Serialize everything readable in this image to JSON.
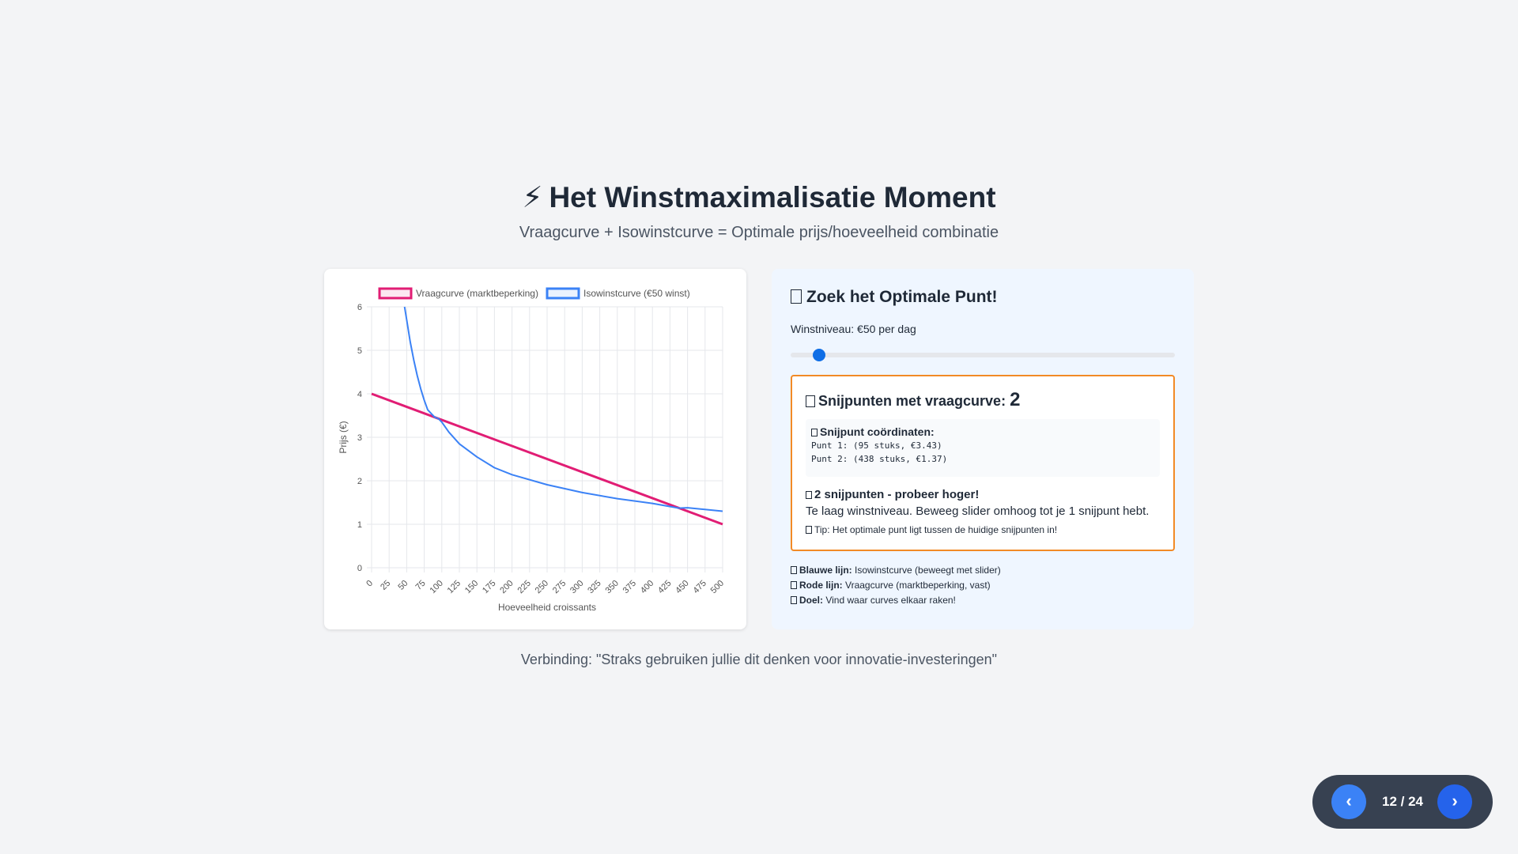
{
  "header": {
    "title_icon": "⚡",
    "title": "Het Winstmaximalisatie Moment",
    "subtitle": "Vraagcurve + Isowinstcurve = Optimale prijs/hoeveelheid combinatie"
  },
  "panel": {
    "title": "Zoek het Optimale Punt!",
    "slider_label": "Winstniveau: €50 per dag",
    "slider_value_fraction": 0.06,
    "result_title": "Snijpunten met vraagcurve:",
    "result_count": "2",
    "coords_title": "Snijpunt coördinaten:",
    "point1": "Punt 1: (95 stuks, €3.43)",
    "point2": "Punt 2: (438 stuks, €1.37)",
    "status_title": "2 snijpunten - probeer hoger!",
    "status_text": "Te laag winstniveau. Beweeg slider omhoog tot je 1 snijpunt hebt.",
    "tip": "Tip: Het optimale punt ligt tussen de huidige snijpunten in!",
    "legend": [
      {
        "key": "Blauwe lijn:",
        "value": "Isowinstcurve (beweegt met slider)"
      },
      {
        "key": "Rode lijn:",
        "value": "Vraagcurve (marktbeperking, vast)"
      },
      {
        "key": "Doel:",
        "value": "Vind waar curves elkaar raken!"
      }
    ]
  },
  "footer": {
    "connection": "Verbinding: \"Straks gebruiken jullie dit denken voor innovatie-investeringen\""
  },
  "nav": {
    "prev_icon": "‹",
    "next_icon": "›",
    "counter": "12 / 24"
  },
  "colors": {
    "demand": "#e11d74",
    "isoprofit": "#3b82f6",
    "accent_border": "#f28a26"
  },
  "chart_data": {
    "type": "line",
    "xlabel": "Hoeveelheid croissants",
    "ylabel": "Prijs (€)",
    "xlim": [
      0,
      500
    ],
    "ylim": [
      0,
      6
    ],
    "x_ticks": [
      "0",
      "25",
      "50",
      "75",
      "100",
      "125",
      "150",
      "175",
      "200",
      "225",
      "250",
      "275",
      "300",
      "325",
      "350",
      "375",
      "400",
      "425",
      "450",
      "475",
      "500"
    ],
    "y_ticks": [
      "0",
      "1",
      "2",
      "3",
      "4",
      "5",
      "6"
    ],
    "grid": true,
    "legend_position": "top",
    "series": [
      {
        "name": "Vraagcurve (marktbeperking)",
        "color": "#e11d74",
        "x": [
          0,
          500
        ],
        "y": [
          4,
          1
        ]
      },
      {
        "name": "Isowinstcurve (€50 winst)",
        "color": "#3b82f6",
        "x": [
          47,
          50,
          55,
          60,
          65,
          70,
          75,
          80,
          90,
          95,
          100,
          110,
          125,
          150,
          175,
          200,
          250,
          300,
          350,
          400,
          438,
          450,
          500
        ],
        "y": [
          6.0,
          5.7,
          5.2,
          4.78,
          4.42,
          4.11,
          3.85,
          3.63,
          3.46,
          3.43,
          3.35,
          3.12,
          2.85,
          2.55,
          2.3,
          2.14,
          1.91,
          1.73,
          1.59,
          1.48,
          1.37,
          1.38,
          1.3
        ]
      }
    ]
  }
}
